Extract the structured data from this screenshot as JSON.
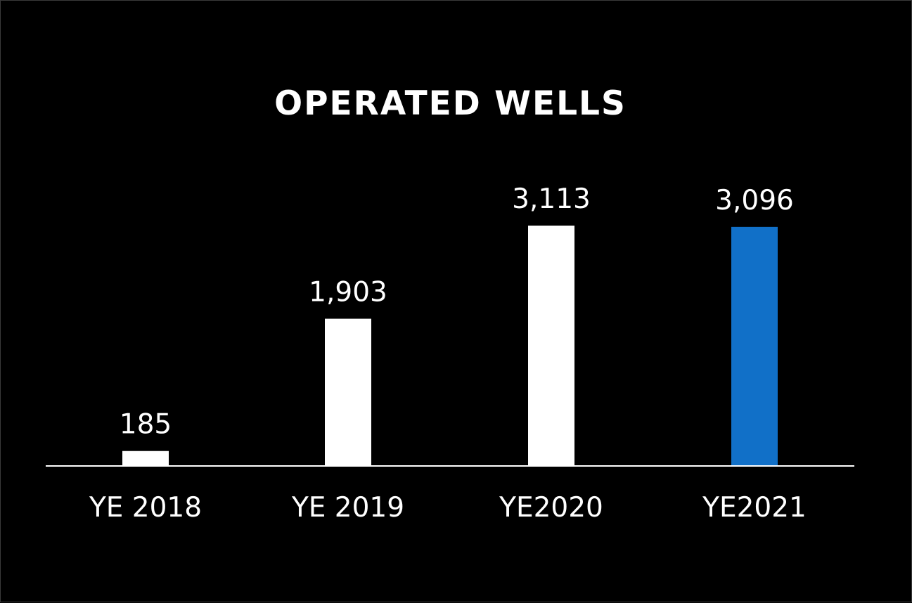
{
  "chart_data": {
    "type": "bar",
    "title": "OPERATED WELLS",
    "xlabel": "",
    "ylabel": "",
    "categories": [
      "YE 2018",
      "YE 2019",
      "YE2020",
      "YE2021"
    ],
    "values": [
      185,
      1903,
      3113,
      3096
    ],
    "value_labels": [
      "185",
      "1,903",
      "3,113",
      "3,096"
    ],
    "bar_colors": [
      "#ffffff",
      "#ffffff",
      "#ffffff",
      "#1170c8"
    ],
    "ylim": [
      0,
      3113
    ],
    "grid": false,
    "legend": "none",
    "background_color": "#000000",
    "axis_color": "#ffffff"
  }
}
